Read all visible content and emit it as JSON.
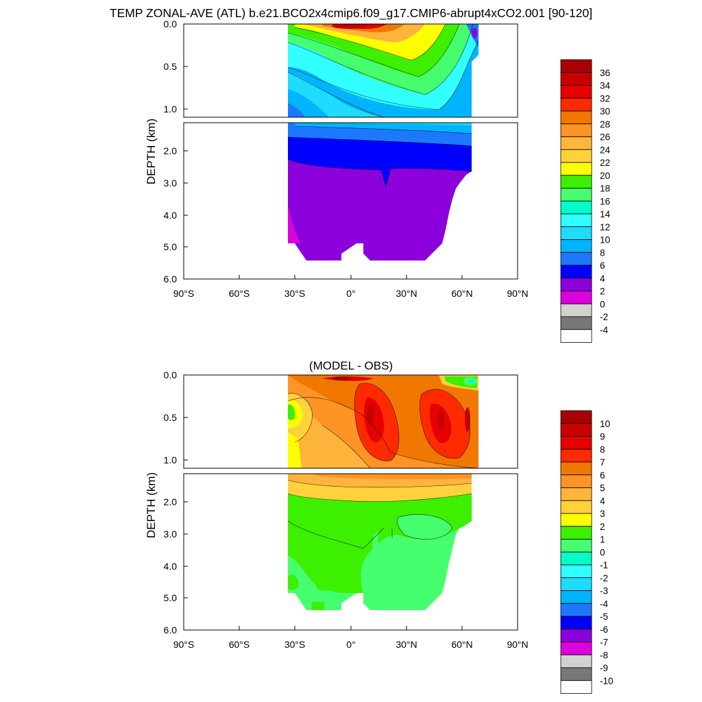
{
  "title": "TEMP ZONAL-AVE (ATL) b.e21.BCO2x4cmip6.f09_g17.CMIP6-abrupt4xCO2.001 [90-120]",
  "chart_data": [
    {
      "type": "heatmap",
      "title": "",
      "ylabel": "DEPTH (km)",
      "xlabel": "",
      "x_ticks": [
        "90°S",
        "60°S",
        "30°S",
        "0°",
        "30°N",
        "60°N",
        "90°N"
      ],
      "xlim": [
        -90,
        90
      ],
      "y_ticks_upper": [
        "0.0",
        "0.5",
        "1.0"
      ],
      "y_ticks_lower": [
        "2.0",
        "3.0",
        "4.0",
        "5.0",
        "6.0"
      ],
      "ylim": [
        0,
        6
      ],
      "colorbar": {
        "labels": [
          "36",
          "34",
          "32",
          "30",
          "28",
          "26",
          "24",
          "22",
          "20",
          "18",
          "16",
          "14",
          "12",
          "10",
          "8",
          "6",
          "4",
          "2",
          "0",
          "-2",
          "-4"
        ],
        "colors": [
          "#a80000",
          "#c80000",
          "#e60000",
          "#ff2a00",
          "#f07800",
          "#ff9426",
          "#ffb43c",
          "#ffd23c",
          "#ffff00",
          "#3cf000",
          "#46ff6e",
          "#00ffc8",
          "#32ffff",
          "#1edcff",
          "#00b4ff",
          "#1e78ff",
          "#0000ff",
          "#8c00dc",
          "#dc00dc",
          "#d2d2d2",
          "#787878",
          "#ffffff"
        ]
      }
    },
    {
      "type": "heatmap",
      "title": "(MODEL - OBS)",
      "ylabel": "DEPTH (km)",
      "xlabel": "",
      "x_ticks": [
        "90°S",
        "60°S",
        "30°S",
        "0°",
        "30°N",
        "60°N",
        "90°N"
      ],
      "xlim": [
        -90,
        90
      ],
      "y_ticks_upper": [
        "0.0",
        "0.5",
        "1.0"
      ],
      "y_ticks_lower": [
        "2.0",
        "3.0",
        "4.0",
        "5.0",
        "6.0"
      ],
      "ylim": [
        0,
        6
      ],
      "colorbar": {
        "labels": [
          "10",
          "9",
          "8",
          "7",
          "6",
          "5",
          "4",
          "3",
          "2",
          "1",
          "0",
          "-1",
          "-2",
          "-3",
          "-4",
          "-5",
          "-6",
          "-7",
          "-8",
          "-9",
          "-10"
        ],
        "colors": [
          "#a80000",
          "#c80000",
          "#e60000",
          "#ff2a00",
          "#f07800",
          "#ff9426",
          "#ffb43c",
          "#ffd23c",
          "#ffff00",
          "#3cf000",
          "#46ff6e",
          "#00ffc8",
          "#32ffff",
          "#1edcff",
          "#00b4ff",
          "#1e78ff",
          "#0000ff",
          "#8c00dc",
          "#dc00dc",
          "#d2d2d2",
          "#787878",
          "#ffffff"
        ]
      }
    }
  ]
}
